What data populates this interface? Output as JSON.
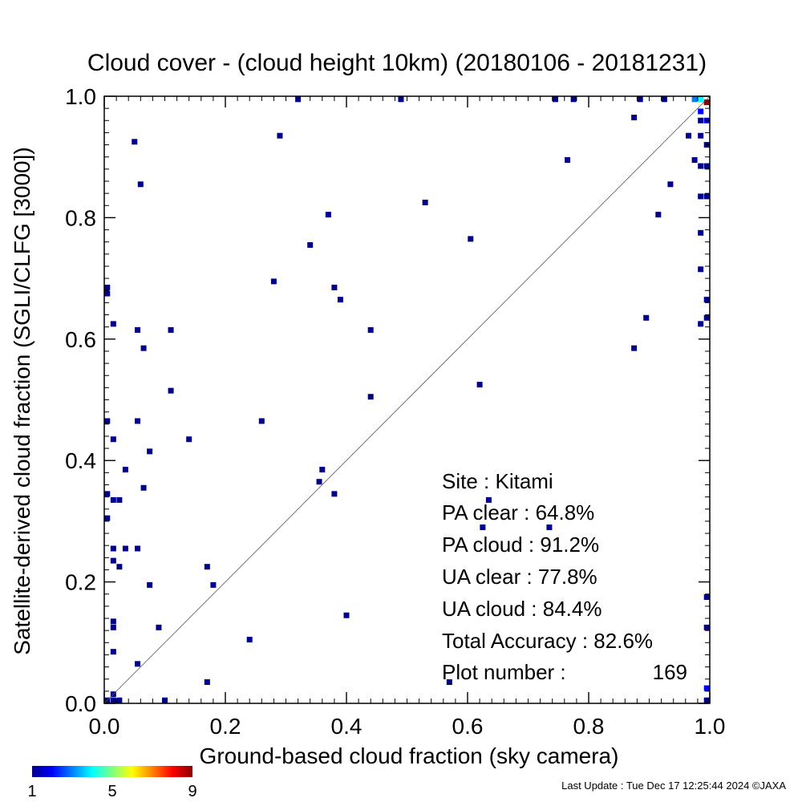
{
  "chart_data": {
    "type": "scatter",
    "title": "Cloud cover - (cloud height 10km)  (20180106 - 20181231)",
    "xlabel": "Ground-based cloud fraction (sky camera)",
    "ylabel": "Satellite-derived cloud fraction (SGLI/CLFG [3000])",
    "xlim": [
      0.0,
      1.0
    ],
    "ylim": [
      0.0,
      1.0
    ],
    "xticks": [
      "0.0",
      "0.2",
      "0.4",
      "0.6",
      "0.8",
      "1.0"
    ],
    "yticks": [
      "0.0",
      "0.2",
      "0.4",
      "0.6",
      "0.8",
      "1.0"
    ],
    "grid": false,
    "diagonal": true,
    "colorbar": {
      "ticks": [
        "1",
        "5",
        "9"
      ],
      "min": 1,
      "max": 9,
      "colors": [
        "#00008b",
        "#0000ff",
        "#0080ff",
        "#00ffff",
        "#80ff80",
        "#ffff00",
        "#ff8000",
        "#ff0000",
        "#8b0000"
      ]
    },
    "points": [
      {
        "x": 0.32,
        "y": 0.995,
        "c": 1
      },
      {
        "x": 0.49,
        "y": 0.995,
        "c": 1
      },
      {
        "x": 0.745,
        "y": 0.995,
        "c": 1
      },
      {
        "x": 0.775,
        "y": 0.995,
        "c": 1
      },
      {
        "x": 0.885,
        "y": 0.995,
        "c": 1
      },
      {
        "x": 0.925,
        "y": 0.995,
        "c": 1
      },
      {
        "x": 0.975,
        "y": 0.995,
        "c": 3
      },
      {
        "x": 0.985,
        "y": 0.995,
        "c": 4
      },
      {
        "x": 0.995,
        "y": 0.99,
        "c": 9
      },
      {
        "x": 0.985,
        "y": 0.975,
        "c": 2
      },
      {
        "x": 0.995,
        "y": 0.96,
        "c": 2
      },
      {
        "x": 0.985,
        "y": 0.96,
        "c": 1
      },
      {
        "x": 0.875,
        "y": 0.965,
        "c": 1
      },
      {
        "x": 0.965,
        "y": 0.935,
        "c": 1
      },
      {
        "x": 0.985,
        "y": 0.935,
        "c": 1
      },
      {
        "x": 0.995,
        "y": 0.92,
        "c": 1
      },
      {
        "x": 0.975,
        "y": 0.895,
        "c": 1
      },
      {
        "x": 0.985,
        "y": 0.885,
        "c": 1
      },
      {
        "x": 0.995,
        "y": 0.885,
        "c": 1
      },
      {
        "x": 0.765,
        "y": 0.895,
        "c": 1
      },
      {
        "x": 0.935,
        "y": 0.855,
        "c": 1
      },
      {
        "x": 0.985,
        "y": 0.835,
        "c": 1
      },
      {
        "x": 0.995,
        "y": 0.835,
        "c": 1
      },
      {
        "x": 0.915,
        "y": 0.805,
        "c": 1
      },
      {
        "x": 0.985,
        "y": 0.775,
        "c": 1
      },
      {
        "x": 0.985,
        "y": 0.715,
        "c": 1
      },
      {
        "x": 0.995,
        "y": 0.665,
        "c": 1
      },
      {
        "x": 0.895,
        "y": 0.635,
        "c": 1
      },
      {
        "x": 0.985,
        "y": 0.625,
        "c": 1
      },
      {
        "x": 0.995,
        "y": 0.635,
        "c": 1
      },
      {
        "x": 0.875,
        "y": 0.585,
        "c": 1
      },
      {
        "x": 0.05,
        "y": 0.925,
        "c": 1
      },
      {
        "x": 0.29,
        "y": 0.935,
        "c": 1
      },
      {
        "x": 0.06,
        "y": 0.855,
        "c": 1
      },
      {
        "x": 0.53,
        "y": 0.825,
        "c": 1
      },
      {
        "x": 0.37,
        "y": 0.805,
        "c": 1
      },
      {
        "x": 0.605,
        "y": 0.765,
        "c": 1
      },
      {
        "x": 0.34,
        "y": 0.755,
        "c": 1
      },
      {
        "x": 0.28,
        "y": 0.695,
        "c": 1
      },
      {
        "x": 0.005,
        "y": 0.685,
        "c": 1
      },
      {
        "x": 0.005,
        "y": 0.675,
        "c": 1
      },
      {
        "x": 0.38,
        "y": 0.685,
        "c": 1
      },
      {
        "x": 0.39,
        "y": 0.665,
        "c": 1
      },
      {
        "x": 0.015,
        "y": 0.625,
        "c": 1
      },
      {
        "x": 0.055,
        "y": 0.615,
        "c": 1
      },
      {
        "x": 0.11,
        "y": 0.615,
        "c": 1
      },
      {
        "x": 0.44,
        "y": 0.615,
        "c": 1
      },
      {
        "x": 0.065,
        "y": 0.585,
        "c": 1
      },
      {
        "x": 0.62,
        "y": 0.525,
        "c": 1
      },
      {
        "x": 0.11,
        "y": 0.515,
        "c": 1
      },
      {
        "x": 0.44,
        "y": 0.505,
        "c": 1
      },
      {
        "x": 0.005,
        "y": 0.465,
        "c": 1
      },
      {
        "x": 0.055,
        "y": 0.465,
        "c": 1
      },
      {
        "x": 0.26,
        "y": 0.465,
        "c": 1
      },
      {
        "x": 0.015,
        "y": 0.435,
        "c": 1
      },
      {
        "x": 0.14,
        "y": 0.435,
        "c": 1
      },
      {
        "x": 0.075,
        "y": 0.415,
        "c": 1
      },
      {
        "x": 0.035,
        "y": 0.385,
        "c": 1
      },
      {
        "x": 0.36,
        "y": 0.385,
        "c": 1
      },
      {
        "x": 0.355,
        "y": 0.365,
        "c": 1
      },
      {
        "x": 0.065,
        "y": 0.355,
        "c": 1
      },
      {
        "x": 0.005,
        "y": 0.345,
        "c": 1
      },
      {
        "x": 0.38,
        "y": 0.345,
        "c": 1
      },
      {
        "x": 0.015,
        "y": 0.335,
        "c": 1
      },
      {
        "x": 0.025,
        "y": 0.335,
        "c": 1
      },
      {
        "x": 0.635,
        "y": 0.335,
        "c": 1
      },
      {
        "x": 0.005,
        "y": 0.305,
        "c": 1
      },
      {
        "x": 0.625,
        "y": 0.29,
        "c": 1
      },
      {
        "x": 0.735,
        "y": 0.29,
        "c": 1
      },
      {
        "x": 0.015,
        "y": 0.255,
        "c": 1
      },
      {
        "x": 0.035,
        "y": 0.255,
        "c": 1
      },
      {
        "x": 0.055,
        "y": 0.255,
        "c": 1
      },
      {
        "x": 0.015,
        "y": 0.235,
        "c": 1
      },
      {
        "x": 0.025,
        "y": 0.225,
        "c": 1
      },
      {
        "x": 0.17,
        "y": 0.225,
        "c": 1
      },
      {
        "x": 0.075,
        "y": 0.195,
        "c": 1
      },
      {
        "x": 0.18,
        "y": 0.195,
        "c": 1
      },
      {
        "x": 0.995,
        "y": 0.175,
        "c": 1
      },
      {
        "x": 0.4,
        "y": 0.145,
        "c": 1
      },
      {
        "x": 0.015,
        "y": 0.135,
        "c": 1
      },
      {
        "x": 0.015,
        "y": 0.125,
        "c": 1
      },
      {
        "x": 0.09,
        "y": 0.125,
        "c": 1
      },
      {
        "x": 0.995,
        "y": 0.125,
        "c": 1
      },
      {
        "x": 0.24,
        "y": 0.105,
        "c": 1
      },
      {
        "x": 0.015,
        "y": 0.085,
        "c": 1
      },
      {
        "x": 0.055,
        "y": 0.065,
        "c": 1
      },
      {
        "x": 0.17,
        "y": 0.035,
        "c": 1
      },
      {
        "x": 0.57,
        "y": 0.035,
        "c": 1
      },
      {
        "x": 0.995,
        "y": 0.025,
        "c": 2
      },
      {
        "x": 0.015,
        "y": 0.015,
        "c": 1
      },
      {
        "x": 0.005,
        "y": 0.005,
        "c": 1
      },
      {
        "x": 0.015,
        "y": 0.005,
        "c": 1
      },
      {
        "x": 0.025,
        "y": 0.005,
        "c": 1
      },
      {
        "x": 0.1,
        "y": 0.005,
        "c": 1
      },
      {
        "x": 0.995,
        "y": 0.005,
        "c": 1
      }
    ]
  },
  "stats": {
    "site": "Site : Kitami",
    "pa_clear": "PA clear :  64.8%",
    "pa_cloud": "PA cloud :  91.2%",
    "ua_clear": "UA clear :  77.8%",
    "ua_cloud": "UA cloud :  84.4%",
    "total_accuracy": "Total Accuracy :  82.6%",
    "plot_number_label": "Plot number :",
    "plot_number_value": "169"
  },
  "footer": {
    "last_update": "Last Update : Tue Dec 17 12:25:44 2024  ©JAXA"
  }
}
